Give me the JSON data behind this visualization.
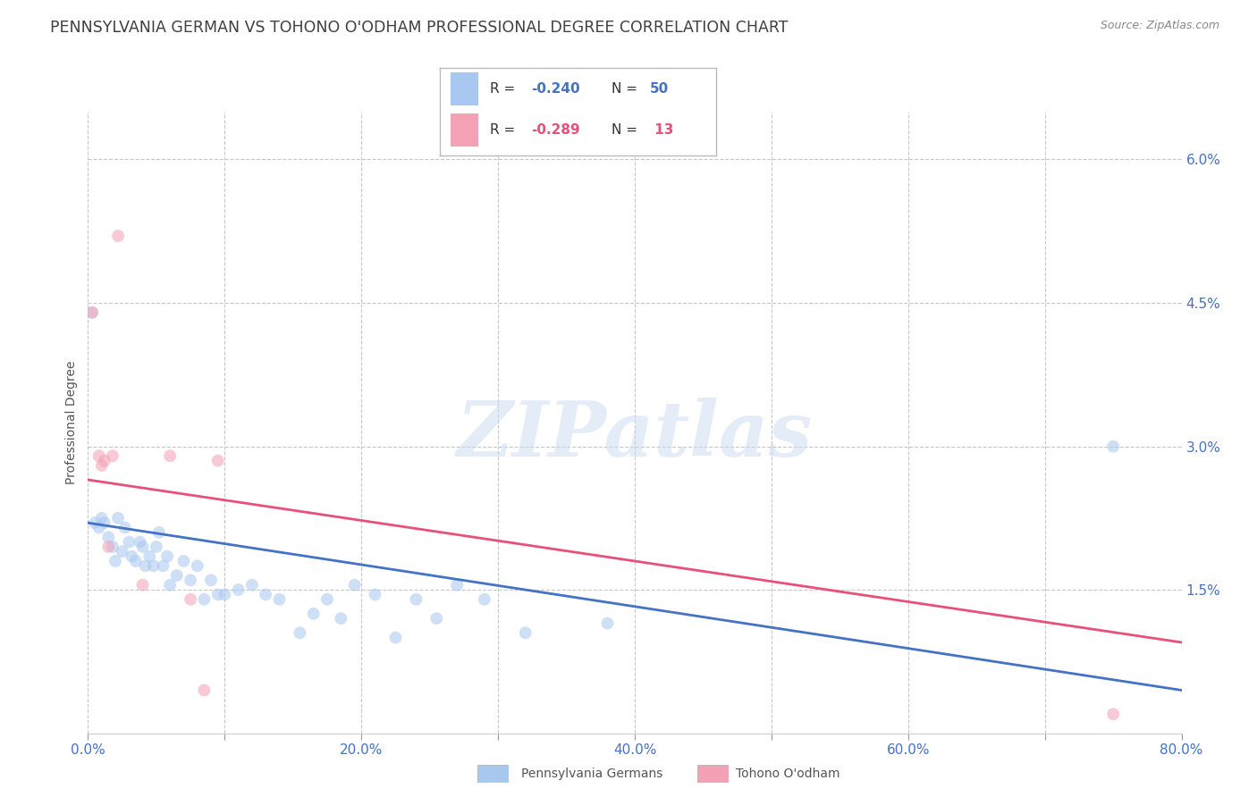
{
  "title": "PENNSYLVANIA GERMAN VS TOHONO O'ODHAM PROFESSIONAL DEGREE CORRELATION CHART",
  "source": "Source: ZipAtlas.com",
  "ylabel": "Professional Degree",
  "watermark": "ZIPatlas",
  "xlim": [
    0.0,
    0.8
  ],
  "ylim": [
    0.0,
    0.065
  ],
  "xticks": [
    0.0,
    0.1,
    0.2,
    0.3,
    0.4,
    0.5,
    0.6,
    0.7,
    0.8
  ],
  "xtick_labels": [
    "0.0%",
    "",
    "20.0%",
    "",
    "40.0%",
    "",
    "60.0%",
    "",
    "80.0%"
  ],
  "yticks_right": [
    0.015,
    0.03,
    0.045,
    0.06
  ],
  "ytick_labels_right": [
    "1.5%",
    "3.0%",
    "4.5%",
    "6.0%"
  ],
  "grid_color": "#c8c8c8",
  "background_color": "#ffffff",
  "blue_color": "#a8c8f0",
  "blue_line_color": "#4472c4",
  "pink_color": "#f4a0b5",
  "pink_line_color": "#e8507a",
  "legend_R_blue": "-0.240",
  "legend_N_blue": "50",
  "legend_R_pink": "-0.289",
  "legend_N_pink": " 13",
  "legend_label_blue": "Pennsylvania Germans",
  "legend_label_pink": "Tohono O'odham",
  "blue_points_x": [
    0.003,
    0.005,
    0.008,
    0.01,
    0.012,
    0.015,
    0.018,
    0.02,
    0.022,
    0.025,
    0.027,
    0.03,
    0.032,
    0.035,
    0.038,
    0.04,
    0.042,
    0.045,
    0.048,
    0.05,
    0.052,
    0.055,
    0.058,
    0.06,
    0.065,
    0.07,
    0.075,
    0.08,
    0.085,
    0.09,
    0.095,
    0.1,
    0.11,
    0.12,
    0.13,
    0.14,
    0.155,
    0.165,
    0.175,
    0.185,
    0.195,
    0.21,
    0.225,
    0.24,
    0.255,
    0.27,
    0.29,
    0.32,
    0.38,
    0.75
  ],
  "blue_points_y": [
    0.044,
    0.022,
    0.0215,
    0.0225,
    0.022,
    0.0205,
    0.0195,
    0.018,
    0.0225,
    0.019,
    0.0215,
    0.02,
    0.0185,
    0.018,
    0.02,
    0.0195,
    0.0175,
    0.0185,
    0.0175,
    0.0195,
    0.021,
    0.0175,
    0.0185,
    0.0155,
    0.0165,
    0.018,
    0.016,
    0.0175,
    0.014,
    0.016,
    0.0145,
    0.0145,
    0.015,
    0.0155,
    0.0145,
    0.014,
    0.0105,
    0.0125,
    0.014,
    0.012,
    0.0155,
    0.0145,
    0.01,
    0.014,
    0.012,
    0.0155,
    0.014,
    0.0105,
    0.0115,
    0.03
  ],
  "pink_points_x": [
    0.003,
    0.008,
    0.01,
    0.012,
    0.015,
    0.018,
    0.022,
    0.04,
    0.06,
    0.075,
    0.085,
    0.095,
    0.75
  ],
  "pink_points_y": [
    0.044,
    0.029,
    0.028,
    0.0285,
    0.0195,
    0.029,
    0.052,
    0.0155,
    0.029,
    0.014,
    0.0045,
    0.0285,
    0.002
  ],
  "blue_trend_x": [
    0.0,
    0.8
  ],
  "blue_trend_y": [
    0.022,
    0.0045
  ],
  "pink_trend_x": [
    0.0,
    0.8
  ],
  "pink_trend_y": [
    0.0265,
    0.0095
  ],
  "axis_label_color": "#4472c4",
  "title_color": "#404040",
  "title_fontsize": 12.5,
  "axis_fontsize": 10,
  "tick_fontsize": 11,
  "marker_size": 100,
  "marker_alpha": 0.55,
  "line_width": 2.0
}
